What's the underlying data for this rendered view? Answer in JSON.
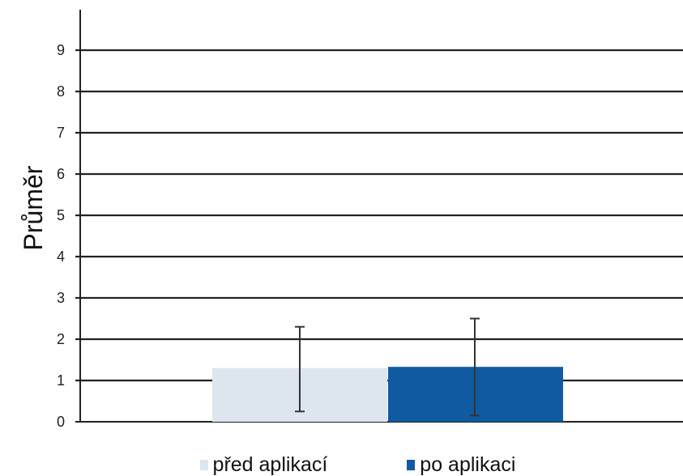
{
  "chart_data": {
    "type": "bar",
    "categories": [
      "před aplikací",
      "po aplikaci"
    ],
    "series": [
      {
        "name": "před aplikací",
        "value": 1.3,
        "error_low": 0.25,
        "error_high": 2.3,
        "color": "#dde5ee"
      },
      {
        "name": "po aplikaci",
        "value": 1.33,
        "error_low": 0.15,
        "error_high": 2.5,
        "color": "#0f5aa0"
      }
    ],
    "title": "",
    "xlabel": "",
    "ylabel": "Průměr",
    "ylim": [
      0,
      10
    ],
    "yticks": [
      0,
      1,
      2,
      3,
      4,
      5,
      6,
      7,
      8,
      9
    ],
    "grid": true,
    "legend_position": "bottom"
  }
}
